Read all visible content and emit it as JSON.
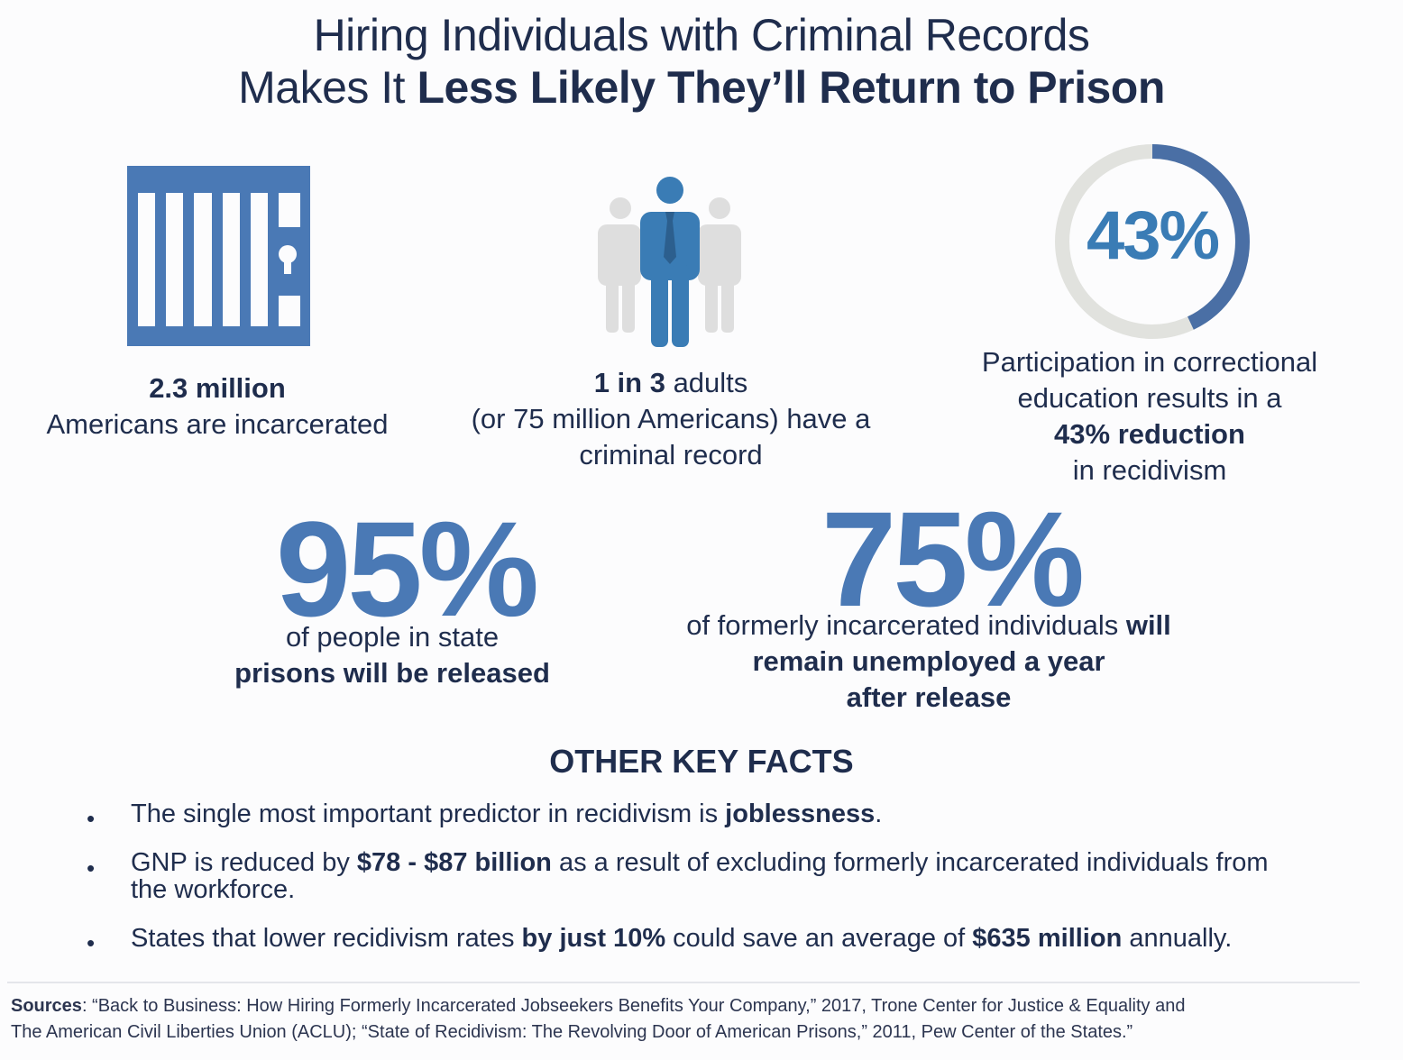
{
  "title": {
    "line1": "Hiring Individuals with Criminal Records",
    "line2_prefix": "Makes It ",
    "line2_bold": "Less Likely They’ll Return to Prison"
  },
  "stats": {
    "incarcerated": {
      "icon": "jail-cell-icon",
      "value": "2.3 million",
      "label": "Americans are incarcerated"
    },
    "criminal_record": {
      "icon": "people-group-icon",
      "value": "1 in 3",
      "label_after_value": " adults",
      "line2": "(or 75 million Americans) have a",
      "line3": "criminal record"
    },
    "education": {
      "ring_value": "43%",
      "ring_fraction": 0.43,
      "line1": "Participation in correctional",
      "line2": "education results in a",
      "bold": "43% reduction",
      "line4": "in recidivism"
    }
  },
  "big_stats": {
    "released": {
      "value": "95%",
      "line1": "of people in state",
      "line2_bold": "prisons will be released"
    },
    "unemployed": {
      "value": "75%",
      "line1_normal": "of formerly incarcerated individuals ",
      "line1_bold": "will",
      "line2_bold": "remain unemployed a year",
      "line3_bold": "after release"
    }
  },
  "key_facts": {
    "heading": "OTHER KEY FACTS",
    "bullet_char": "•",
    "fact1": {
      "before": "The single most important predictor in recidivism is ",
      "bold": "joblessness",
      "after": "."
    },
    "fact2": {
      "before": "GNP is reduced by ",
      "bold": "$78 - $87 billion",
      "after": " as a result of excluding formerly incarcerated individuals from",
      "line2": "the workforce."
    },
    "fact3": {
      "before": "States that lower recidivism rates ",
      "bold1": "by just 10%",
      "middle": " could save an average of ",
      "bold2": "$635 million",
      "after": " annually."
    }
  },
  "sources": {
    "label": "Sources",
    "line1": ": “Back to Business: How Hiring Formerly Incarcerated Jobseekers Benefits Your Company,” 2017, Trone Center for Justice & Equality and",
    "line2": "The American Civil Liberties Union (ACLU); “State of Recidivism: The Revolving Door of American Prisons,” 2011, Pew Center of the States.”"
  },
  "colors": {
    "navy": "#1f2d4d",
    "accent_blue": "#4a79b5",
    "ring_blue": "#4a6fa5",
    "ring_gray": "#e1e2de",
    "figure_gray": "#dedede",
    "figure_blue": "#3a7cb5"
  }
}
